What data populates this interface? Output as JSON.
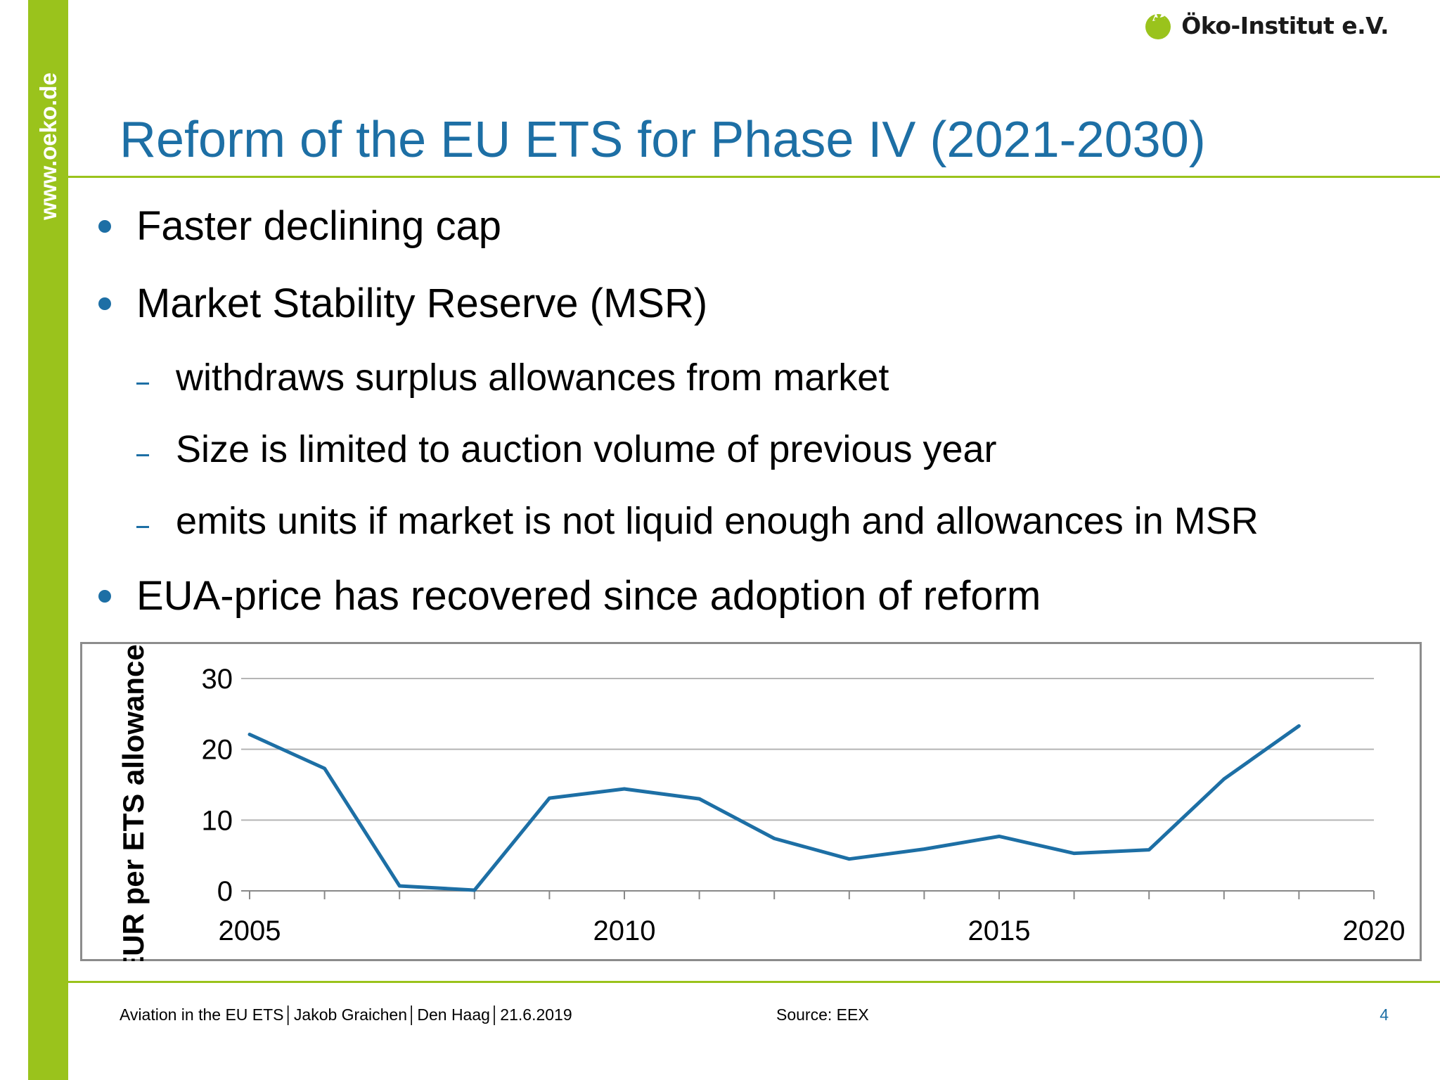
{
  "sidebar": {
    "url": "www.oeko.de"
  },
  "logo": {
    "text": "Öko-Institut e.V."
  },
  "title": "Reform of the EU ETS for Phase IV (2021-2030)",
  "bullets": [
    {
      "text": "Faster declining cap"
    },
    {
      "text": "Market Stability Reserve (MSR)"
    },
    {
      "text": "EUA-price has recovered since adoption of reform"
    }
  ],
  "subbullets": [
    {
      "text": "withdraws surplus allowances from market"
    },
    {
      "text": "Size is limited to auction volume of previous year"
    },
    {
      "text": "emits units if market is not liquid enough and allowances in MSR"
    }
  ],
  "colors": {
    "accent_green": "#9ac31c",
    "accent_blue": "#1d6fa5"
  },
  "chart_data": {
    "type": "line",
    "title": "",
    "xlabel": "",
    "ylabel": "EUR per ETS allowance",
    "xlim": [
      2005,
      2020
    ],
    "ylim": [
      0,
      30
    ],
    "x_ticks": [
      2005,
      2010,
      2015,
      2020
    ],
    "y_ticks": [
      0,
      10,
      20,
      30
    ],
    "grid": true,
    "x": [
      2005,
      2006,
      2007,
      2008,
      2009,
      2010,
      2011,
      2012,
      2013,
      2014,
      2015,
      2016,
      2017,
      2018,
      2019
    ],
    "series": [
      {
        "values": [
          22.1,
          17.3,
          0.7,
          0.1,
          13.1,
          14.4,
          13.0,
          7.4,
          4.5,
          5.9,
          7.7,
          5.3,
          5.8,
          15.8,
          23.3
        ]
      }
    ]
  },
  "footer": {
    "meta": "Aviation in the EU ETS│Jakob Graichen│Den Haag│21.6.2019",
    "source": "Source: EEX",
    "page": "4"
  }
}
